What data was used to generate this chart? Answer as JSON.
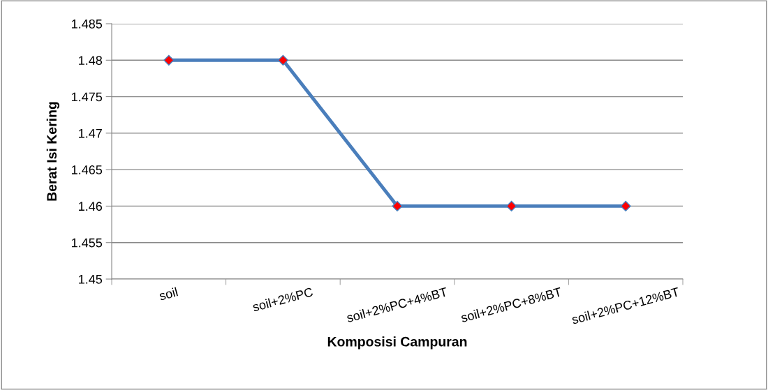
{
  "chart_data": {
    "type": "line",
    "xlabel": "Komposisi Campuran",
    "ylabel": "Berat Isi Kering",
    "categories": [
      "soil",
      "soil+2%PC",
      "soil+2%PC+4%BT",
      "soil+2%PC+8%BT",
      "soil+2%PC+12%BT"
    ],
    "series": [
      {
        "color": "#4a7ebb",
        "values": [
          1.48,
          1.48,
          1.46,
          1.46,
          1.46
        ]
      }
    ],
    "ylim": [
      1.45,
      1.485
    ],
    "yticks": [
      1.45,
      1.455,
      1.46,
      1.465,
      1.47,
      1.475,
      1.48,
      1.485
    ],
    "grid": "y",
    "marker": "diamond",
    "line_style": "solid",
    "legend": false
  }
}
